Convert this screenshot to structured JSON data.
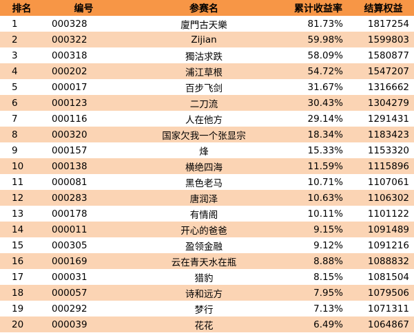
{
  "table": {
    "headers": [
      "排名",
      "编号",
      "参赛名",
      "累计收益率",
      "结算权益"
    ],
    "rows": [
      [
        "1",
        "000328",
        "廈門古天樂",
        "81.73%",
        "1817254"
      ],
      [
        "2",
        "000322",
        "Zijian",
        "59.98%",
        "1599803"
      ],
      [
        "3",
        "000318",
        "獨沽求跌",
        "58.09%",
        "1580877"
      ],
      [
        "4",
        "000202",
        "浦江草根",
        "54.72%",
        "1547207"
      ],
      [
        "5",
        "000017",
        "百步飞剑",
        "31.67%",
        "1316662"
      ],
      [
        "6",
        "000123",
        "二刀流",
        "30.43%",
        "1304279"
      ],
      [
        "7",
        "000116",
        "人在他方",
        "29.14%",
        "1291431"
      ],
      [
        "8",
        "000320",
        "国家欠我一个张显宗",
        "18.34%",
        "1183423"
      ],
      [
        "9",
        "000157",
        "烽",
        "15.33%",
        "1153320"
      ],
      [
        "10",
        "000138",
        "横绝四海",
        "11.59%",
        "1115896"
      ],
      [
        "11",
        "000081",
        "黑色老马",
        "10.71%",
        "1107061"
      ],
      [
        "12",
        "000283",
        "唐润泽",
        "10.63%",
        "1106302"
      ],
      [
        "13",
        "000178",
        "有情阁",
        "10.11%",
        "1101122"
      ],
      [
        "14",
        "000011",
        "开心的爸爸",
        "9.15%",
        "1091489"
      ],
      [
        "15",
        "000305",
        "盈领金融",
        "9.12%",
        "1091216"
      ],
      [
        "16",
        "000169",
        "云在青天水在瓶",
        "8.88%",
        "1088832"
      ],
      [
        "17",
        "000031",
        "猎豹",
        "8.15%",
        "1081504"
      ],
      [
        "18",
        "000057",
        "诗和远方",
        "7.95%",
        "1079506"
      ],
      [
        "19",
        "000292",
        "梦行",
        "7.13%",
        "1071311"
      ],
      [
        "20",
        "000039",
        "花花",
        "6.49%",
        "1064867"
      ]
    ],
    "header_color": "#f79646",
    "band_color": "#fbd4b4"
  }
}
